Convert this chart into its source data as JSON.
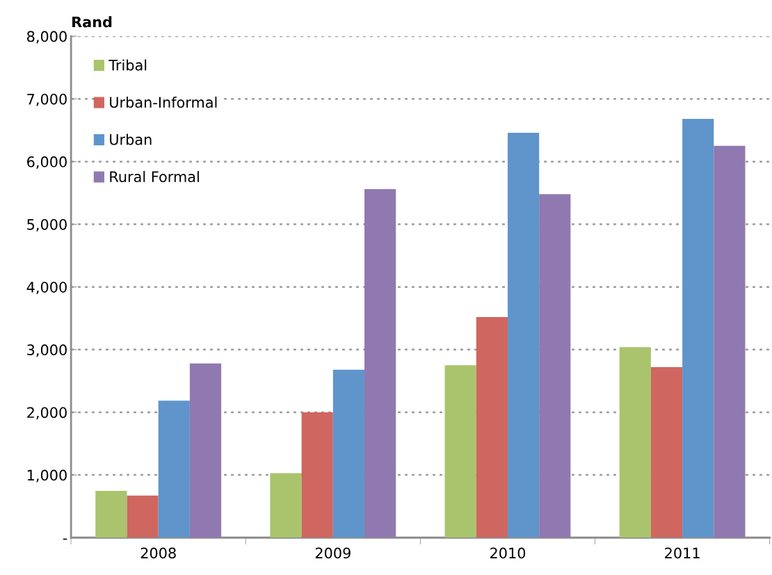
{
  "chart_data": {
    "type": "bar",
    "ylabel": "Rand",
    "categories": [
      "2008",
      "2009",
      "2010",
      "2011"
    ],
    "series": [
      {
        "name": "Tribal",
        "color": "#a9c46c",
        "values": [
          745,
          1030,
          2750,
          3040
        ]
      },
      {
        "name": "Urban-Informal",
        "color": "#cf665f",
        "values": [
          670,
          2000,
          3520,
          2720
        ]
      },
      {
        "name": "Urban",
        "color": "#5f95cb",
        "values": [
          2185,
          2680,
          6460,
          6680
        ]
      },
      {
        "name": "Rural Formal",
        "color": "#9079b0",
        "values": [
          2780,
          5560,
          5480,
          6250
        ]
      }
    ],
    "ylim": [
      0,
      8000
    ],
    "yticks": [
      {
        "value": 0,
        "label": "-"
      },
      {
        "value": 1000,
        "label": "1,000"
      },
      {
        "value": 2000,
        "label": "2,000"
      },
      {
        "value": 3000,
        "label": "3,000"
      },
      {
        "value": 4000,
        "label": "4,000"
      },
      {
        "value": 5000,
        "label": "5,000"
      },
      {
        "value": 6000,
        "label": "6,000"
      },
      {
        "value": 7000,
        "label": "7,000"
      },
      {
        "value": 8000,
        "label": "8,000"
      }
    ],
    "grid": "y",
    "legend": "top left"
  }
}
